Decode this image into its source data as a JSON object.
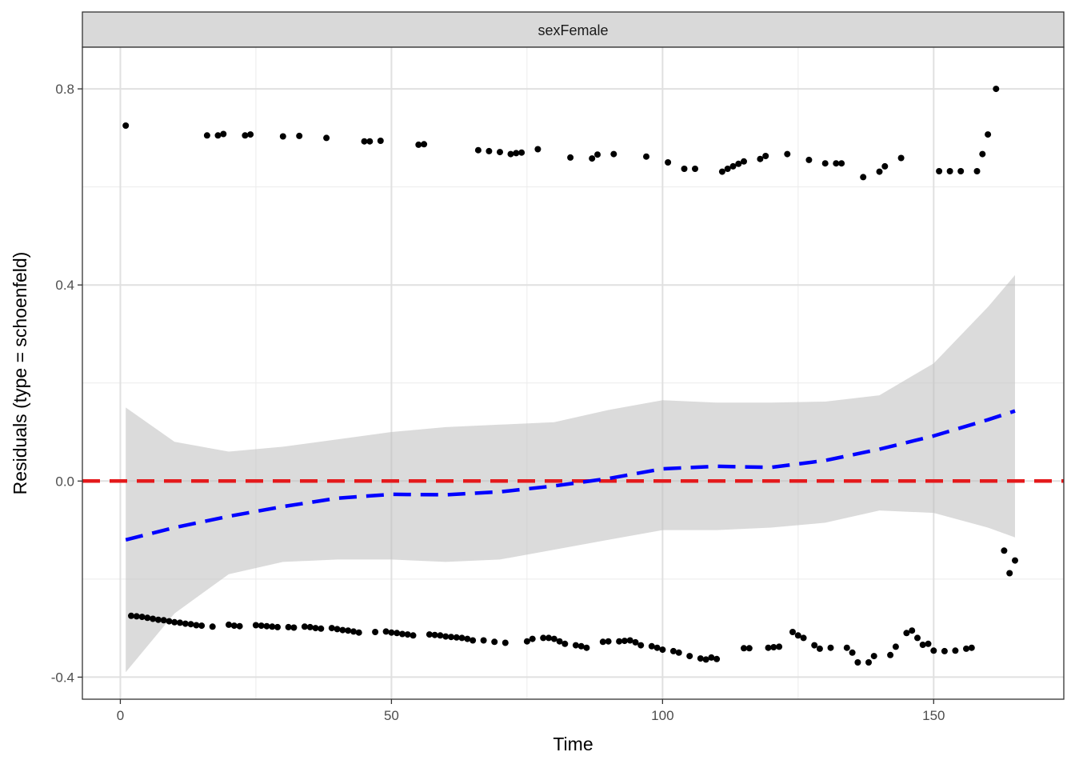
{
  "chart_data": {
    "type": "scatter",
    "facet_label": "sexFemale",
    "xlabel": "Time",
    "ylabel": "Residuals (type = schoenfeld)",
    "xlim": [
      -7,
      174
    ],
    "ylim": [
      -0.445,
      0.885
    ],
    "x_ticks": [
      0,
      50,
      100,
      150
    ],
    "x_tick_labels": [
      "0",
      "50",
      "100",
      "150"
    ],
    "x_minor_ticks": [
      25,
      75,
      125
    ],
    "y_ticks": [
      -0.4,
      0.0,
      0.4,
      0.8
    ],
    "y_tick_labels": [
      "-0.4",
      "0.0",
      "0.4",
      "0.8"
    ],
    "y_minor_ticks": [
      -0.2,
      0.2,
      0.6
    ],
    "reference_line": {
      "y": 0,
      "color": "#e41a1c",
      "style": "dashed"
    },
    "smooth": {
      "color": "#0000ff",
      "style": "dashed",
      "x": [
        1,
        10,
        20,
        30,
        40,
        50,
        60,
        70,
        80,
        90,
        100,
        110,
        120,
        130,
        140,
        150,
        160,
        165
      ],
      "y": [
        -0.12,
        -0.095,
        -0.072,
        -0.052,
        -0.035,
        -0.027,
        -0.028,
        -0.022,
        -0.01,
        0.005,
        0.025,
        0.03,
        0.028,
        0.042,
        0.065,
        0.092,
        0.125,
        0.143
      ]
    },
    "confidence_band": {
      "color": "#bdbdbd",
      "x": [
        1,
        10,
        20,
        30,
        40,
        50,
        60,
        70,
        80,
        90,
        100,
        110,
        120,
        130,
        140,
        150,
        160,
        165
      ],
      "upper": [
        0.15,
        0.08,
        0.06,
        0.07,
        0.085,
        0.1,
        0.11,
        0.115,
        0.12,
        0.145,
        0.165,
        0.16,
        0.16,
        0.162,
        0.175,
        0.24,
        0.355,
        0.42
      ],
      "lower": [
        -0.39,
        -0.27,
        -0.19,
        -0.165,
        -0.16,
        -0.16,
        -0.165,
        -0.16,
        -0.14,
        -0.12,
        -0.1,
        -0.1,
        -0.095,
        -0.085,
        -0.06,
        -0.065,
        -0.095,
        -0.115
      ]
    },
    "points": [
      [
        1,
        0.725
      ],
      [
        16,
        0.705
      ],
      [
        18,
        0.705
      ],
      [
        19,
        0.708
      ],
      [
        23,
        0.705
      ],
      [
        24,
        0.707
      ],
      [
        30,
        0.703
      ],
      [
        33,
        0.704
      ],
      [
        38,
        0.7
      ],
      [
        45,
        0.693
      ],
      [
        46,
        0.693
      ],
      [
        48,
        0.694
      ],
      [
        55,
        0.686
      ],
      [
        56,
        0.687
      ],
      [
        66,
        0.675
      ],
      [
        68,
        0.673
      ],
      [
        70,
        0.671
      ],
      [
        72,
        0.667
      ],
      [
        73,
        0.669
      ],
      [
        74,
        0.67
      ],
      [
        77,
        0.677
      ],
      [
        83,
        0.66
      ],
      [
        87,
        0.658
      ],
      [
        88,
        0.666
      ],
      [
        91,
        0.667
      ],
      [
        97,
        0.662
      ],
      [
        101,
        0.65
      ],
      [
        104,
        0.637
      ],
      [
        106,
        0.637
      ],
      [
        111,
        0.631
      ],
      [
        112,
        0.637
      ],
      [
        113,
        0.642
      ],
      [
        114,
        0.647
      ],
      [
        115,
        0.652
      ],
      [
        118,
        0.657
      ],
      [
        119,
        0.663
      ],
      [
        123,
        0.667
      ],
      [
        127,
        0.655
      ],
      [
        130,
        0.648
      ],
      [
        132,
        0.648
      ],
      [
        133,
        0.648
      ],
      [
        137,
        0.62
      ],
      [
        140,
        0.631
      ],
      [
        141,
        0.642
      ],
      [
        144,
        0.659
      ],
      [
        151,
        0.632
      ],
      [
        153,
        0.632
      ],
      [
        155,
        0.632
      ],
      [
        158,
        0.632
      ],
      [
        159,
        0.667
      ],
      [
        160,
        0.707
      ],
      [
        161.5,
        0.8
      ],
      [
        163,
        -0.142
      ],
      [
        164,
        -0.188
      ],
      [
        165,
        -0.162
      ],
      [
        2,
        -0.275
      ],
      [
        3,
        -0.276
      ],
      [
        4,
        -0.277
      ],
      [
        5,
        -0.279
      ],
      [
        6,
        -0.281
      ],
      [
        7,
        -0.283
      ],
      [
        8,
        -0.284
      ],
      [
        9,
        -0.286
      ],
      [
        10,
        -0.288
      ],
      [
        11,
        -0.289
      ],
      [
        12,
        -0.291
      ],
      [
        13,
        -0.292
      ],
      [
        14,
        -0.294
      ],
      [
        15,
        -0.295
      ],
      [
        17,
        -0.297
      ],
      [
        20,
        -0.293
      ],
      [
        21,
        -0.295
      ],
      [
        22,
        -0.296
      ],
      [
        25,
        -0.294
      ],
      [
        26,
        -0.295
      ],
      [
        27,
        -0.296
      ],
      [
        28,
        -0.297
      ],
      [
        29,
        -0.298
      ],
      [
        31,
        -0.298
      ],
      [
        32,
        -0.299
      ],
      [
        34,
        -0.297
      ],
      [
        35,
        -0.298
      ],
      [
        36,
        -0.3
      ],
      [
        37,
        -0.301
      ],
      [
        39,
        -0.3
      ],
      [
        40,
        -0.302
      ],
      [
        41,
        -0.304
      ],
      [
        42,
        -0.305
      ],
      [
        43,
        -0.307
      ],
      [
        44,
        -0.309
      ],
      [
        47,
        -0.308
      ],
      [
        49,
        -0.307
      ],
      [
        50,
        -0.309
      ],
      [
        51,
        -0.31
      ],
      [
        52,
        -0.312
      ],
      [
        53,
        -0.313
      ],
      [
        54,
        -0.315
      ],
      [
        57,
        -0.313
      ],
      [
        58,
        -0.314
      ],
      [
        59,
        -0.315
      ],
      [
        60,
        -0.317
      ],
      [
        61,
        -0.318
      ],
      [
        62,
        -0.319
      ],
      [
        63,
        -0.32
      ],
      [
        64,
        -0.322
      ],
      [
        65,
        -0.325
      ],
      [
        67,
        -0.325
      ],
      [
        69,
        -0.328
      ],
      [
        71,
        -0.33
      ],
      [
        75,
        -0.327
      ],
      [
        76,
        -0.322
      ],
      [
        78,
        -0.32
      ],
      [
        79,
        -0.32
      ],
      [
        80,
        -0.322
      ],
      [
        81,
        -0.327
      ],
      [
        82,
        -0.332
      ],
      [
        84,
        -0.335
      ],
      [
        85,
        -0.337
      ],
      [
        86,
        -0.34
      ],
      [
        89,
        -0.328
      ],
      [
        90,
        -0.327
      ],
      [
        92,
        -0.327
      ],
      [
        93,
        -0.326
      ],
      [
        94,
        -0.325
      ],
      [
        95,
        -0.329
      ],
      [
        96,
        -0.335
      ],
      [
        98,
        -0.337
      ],
      [
        99,
        -0.34
      ],
      [
        100,
        -0.344
      ],
      [
        102,
        -0.347
      ],
      [
        103,
        -0.35
      ],
      [
        105,
        -0.357
      ],
      [
        107,
        -0.362
      ],
      [
        108,
        -0.364
      ],
      [
        109,
        -0.36
      ],
      [
        110,
        -0.363
      ],
      [
        115,
        -0.341
      ],
      [
        116,
        -0.341
      ],
      [
        119.5,
        -0.34
      ],
      [
        120.5,
        -0.339
      ],
      [
        121.5,
        -0.338
      ],
      [
        124,
        -0.308
      ],
      [
        125,
        -0.315
      ],
      [
        126,
        -0.32
      ],
      [
        128,
        -0.335
      ],
      [
        129,
        -0.342
      ],
      [
        131,
        -0.34
      ],
      [
        134,
        -0.34
      ],
      [
        135,
        -0.35
      ],
      [
        136,
        -0.37
      ],
      [
        138,
        -0.37
      ],
      [
        139,
        -0.357
      ],
      [
        142,
        -0.355
      ],
      [
        143,
        -0.338
      ],
      [
        145,
        -0.31
      ],
      [
        146,
        -0.305
      ],
      [
        147,
        -0.32
      ],
      [
        148,
        -0.334
      ],
      [
        149,
        -0.332
      ],
      [
        150,
        -0.346
      ],
      [
        152,
        -0.347
      ],
      [
        154,
        -0.346
      ],
      [
        156,
        -0.342
      ],
      [
        157,
        -0.34
      ]
    ]
  }
}
